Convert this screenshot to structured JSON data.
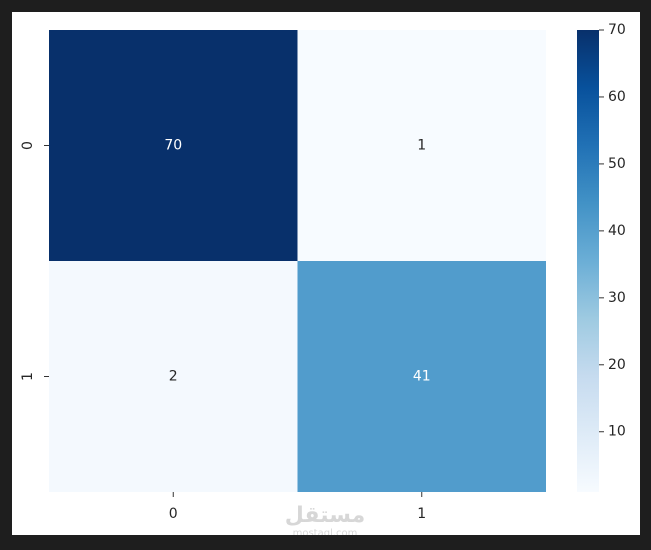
{
  "chart_data": {
    "type": "heatmap",
    "x_categories": [
      "0",
      "1"
    ],
    "y_categories": [
      "0",
      "1"
    ],
    "values": [
      [
        70,
        1
      ],
      [
        2,
        41
      ]
    ],
    "colorscale": [
      "#f7fbff",
      "#deebf7",
      "#c6dbef",
      "#9ecae1",
      "#6baed6",
      "#4292c6",
      "#2171b5",
      "#08519c",
      "#08306b"
    ],
    "clim": [
      1,
      70
    ],
    "cticks": [
      10,
      20,
      30,
      40,
      50,
      60,
      70
    ],
    "watermark": "مستقل",
    "watermark_sub": "mostaql.com"
  }
}
